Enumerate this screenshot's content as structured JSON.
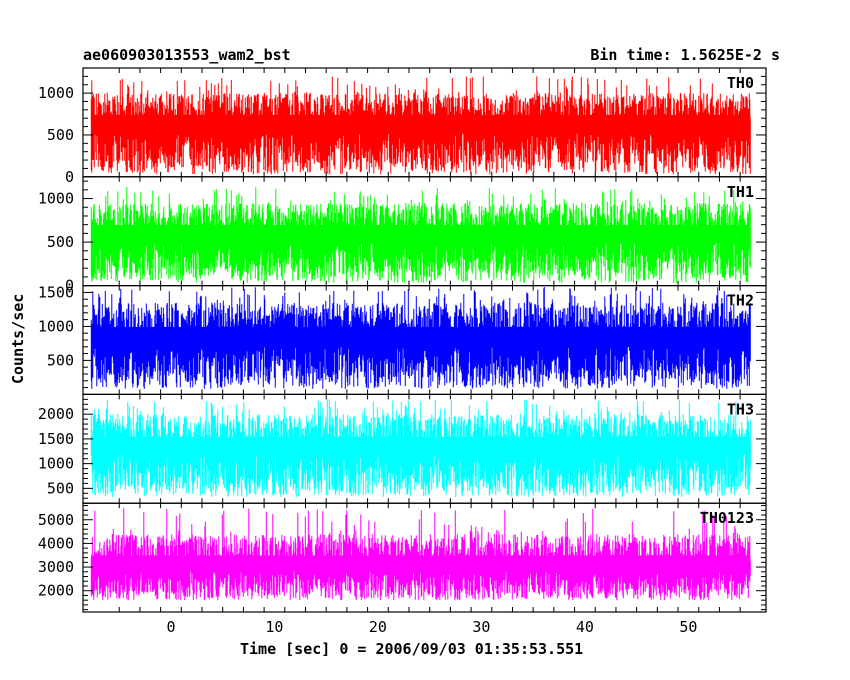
{
  "chart_data": {
    "type": "line",
    "title": "ae060903013553_wam2_bst",
    "subtitle": "Bin time: 1.5625E-2 s",
    "xlabel": "Time [sec] 0 = 2006/09/03 01:35:53.551",
    "ylabel": "Counts/sec",
    "xlim": [
      -8.5,
      57.5
    ],
    "x_ticks": [
      0,
      10,
      20,
      30,
      40,
      50
    ],
    "x_range_data": [
      -7.7,
      56.0
    ],
    "panels": [
      {
        "name": "TH0",
        "color": "#ff0000",
        "ylim": [
          0,
          1300
        ],
        "y_ticks": [
          0,
          500,
          1000
        ],
        "mean": 600,
        "low": 30,
        "high": 1000,
        "peak": 1200
      },
      {
        "name": "TH1",
        "color": "#00ff00",
        "ylim": [
          0,
          1250
        ],
        "y_ticks": [
          0,
          500,
          1000
        ],
        "mean": 560,
        "low": 30,
        "high": 950,
        "peak": 1150
      },
      {
        "name": "TH2",
        "color": "#0000ff",
        "ylim": [
          0,
          1600
        ],
        "y_ticks": [
          500,
          1000,
          1500
        ],
        "mean": 800,
        "low": 80,
        "high": 1350,
        "peak": 1580
      },
      {
        "name": "TH3",
        "color": "#00ffff",
        "ylim": [
          200,
          2400
        ],
        "y_ticks": [
          500,
          1000,
          1500,
          2000
        ],
        "mean": 1300,
        "low": 320,
        "high": 2000,
        "peak": 2300
      },
      {
        "name": "TH0123",
        "color": "#ff00ff",
        "ylim": [
          1100,
          5700
        ],
        "y_ticks": [
          2000,
          3000,
          4000,
          5000
        ],
        "mean": 3000,
        "low": 1600,
        "high": 4400,
        "peak": 5500
      }
    ]
  }
}
